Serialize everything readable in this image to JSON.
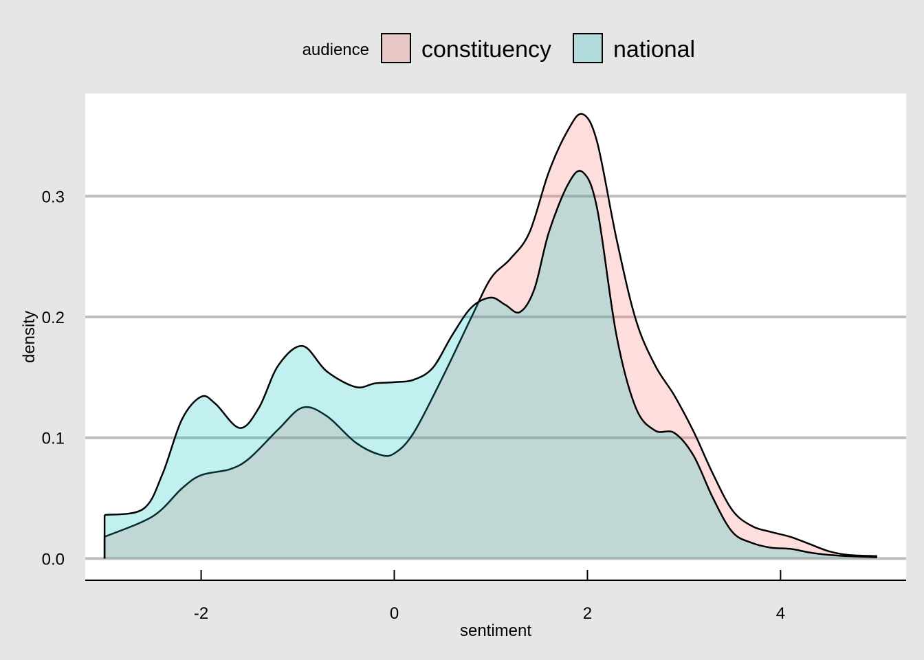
{
  "chart_data": {
    "type": "area",
    "xlabel": "sentiment",
    "ylabel": "density",
    "xlim": [
      -3.2,
      5.3
    ],
    "ylim": [
      -0.018,
      0.385
    ],
    "x_ticks": [
      -2,
      0,
      2,
      4
    ],
    "x_tick_labels": [
      "-2",
      "0",
      "2",
      "4"
    ],
    "y_ticks": [
      0.0,
      0.1,
      0.2,
      0.3
    ],
    "y_tick_labels": [
      "0.0",
      "0.1",
      "0.2",
      "0.3"
    ],
    "grid": "horizontal major lines",
    "legend": {
      "title": "audience",
      "position": "top",
      "entries": [
        "constituency",
        "national"
      ]
    },
    "series": [
      {
        "name": "constituency",
        "color": "#f8766d",
        "x": [
          -3.0,
          -2.5,
          -2.2,
          -2.0,
          -1.7,
          -1.5,
          -1.2,
          -0.95,
          -0.7,
          -0.4,
          -0.15,
          0.0,
          0.2,
          0.5,
          0.8,
          1.0,
          1.2,
          1.4,
          1.6,
          1.8,
          1.95,
          2.1,
          2.3,
          2.5,
          2.7,
          2.9,
          3.1,
          3.3,
          3.5,
          3.7,
          3.9,
          4.1,
          4.3,
          4.5,
          4.7,
          5.0
        ],
        "values": [
          0.018,
          0.035,
          0.058,
          0.069,
          0.074,
          0.083,
          0.107,
          0.125,
          0.118,
          0.096,
          0.086,
          0.087,
          0.104,
          0.15,
          0.2,
          0.232,
          0.248,
          0.27,
          0.32,
          0.355,
          0.368,
          0.345,
          0.265,
          0.198,
          0.16,
          0.135,
          0.105,
          0.07,
          0.04,
          0.027,
          0.022,
          0.018,
          0.012,
          0.006,
          0.003,
          0.002
        ]
      },
      {
        "name": "national",
        "color": "#00bfc4",
        "x": [
          -3.0,
          -2.6,
          -2.4,
          -2.2,
          -2.0,
          -1.85,
          -1.6,
          -1.4,
          -1.2,
          -0.95,
          -0.7,
          -0.4,
          -0.2,
          0.0,
          0.2,
          0.4,
          0.6,
          0.8,
          1.0,
          1.15,
          1.3,
          1.45,
          1.6,
          1.8,
          1.95,
          2.1,
          2.3,
          2.5,
          2.7,
          2.9,
          3.1,
          3.3,
          3.5,
          3.7,
          3.9,
          4.1,
          4.3,
          4.5,
          4.7,
          5.0
        ],
        "values": [
          0.036,
          0.041,
          0.07,
          0.115,
          0.134,
          0.128,
          0.108,
          0.125,
          0.16,
          0.176,
          0.155,
          0.142,
          0.145,
          0.146,
          0.148,
          0.158,
          0.185,
          0.208,
          0.216,
          0.21,
          0.204,
          0.223,
          0.27,
          0.31,
          0.32,
          0.29,
          0.185,
          0.125,
          0.106,
          0.104,
          0.085,
          0.05,
          0.022,
          0.013,
          0.009,
          0.008,
          0.005,
          0.003,
          0.002,
          0.001
        ]
      }
    ]
  }
}
